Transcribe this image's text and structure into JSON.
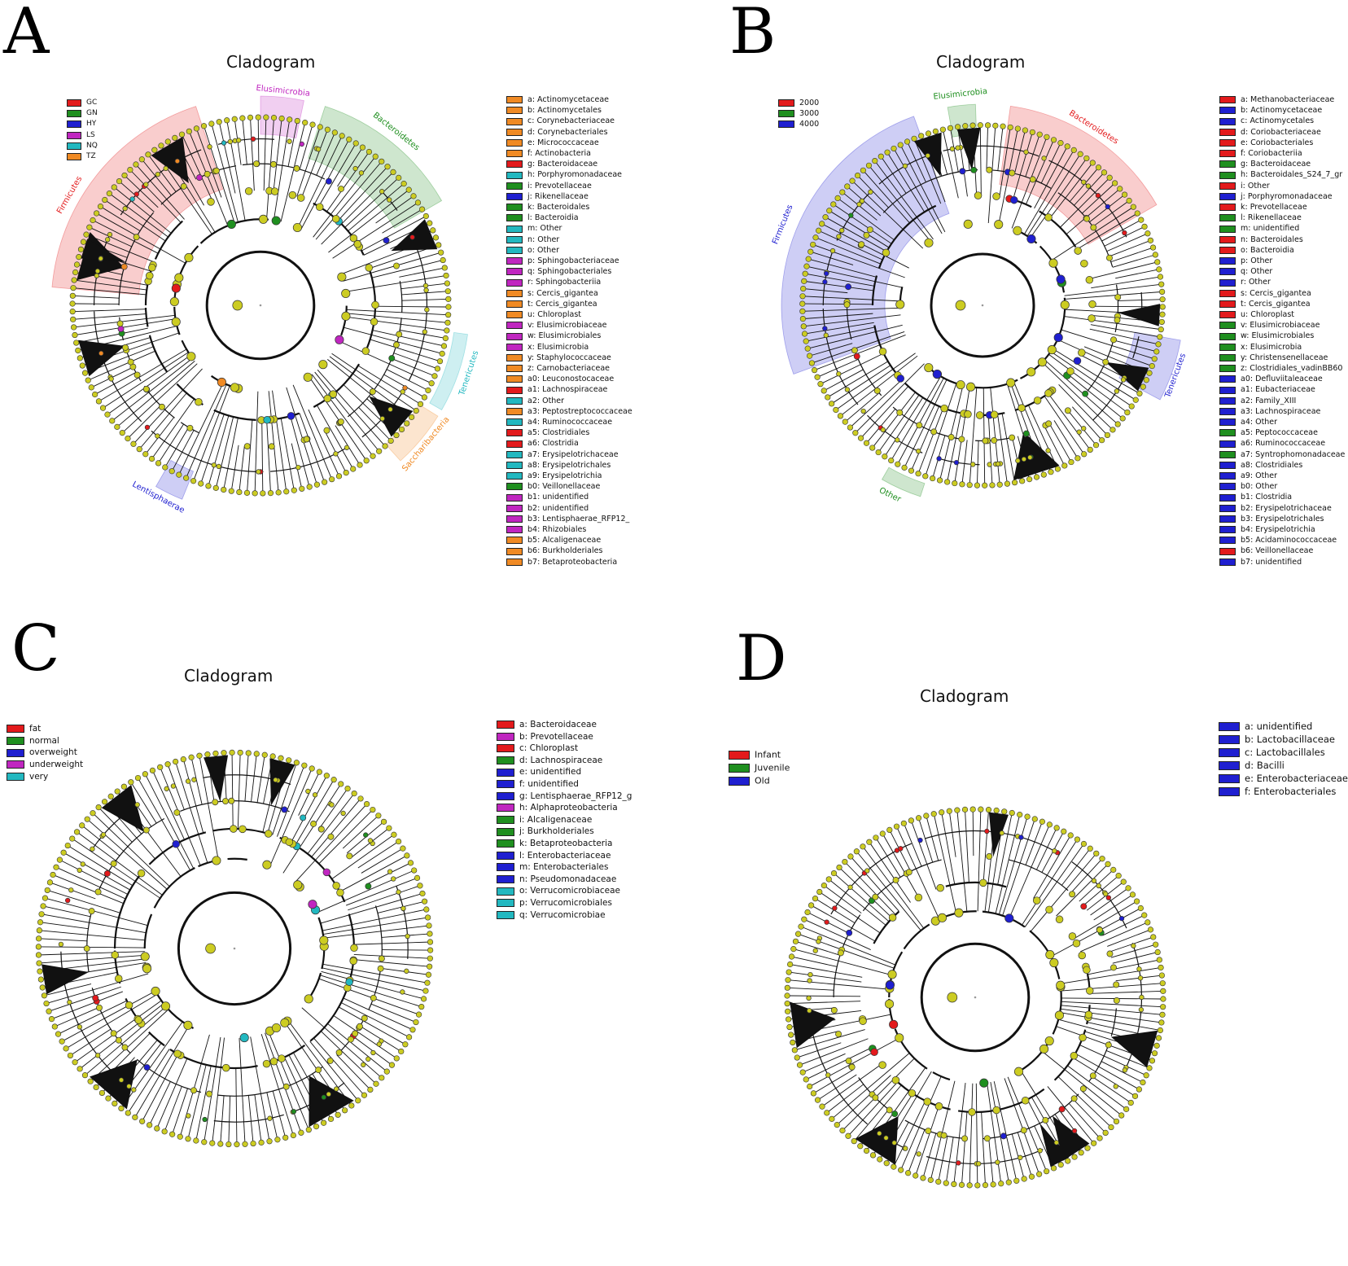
{
  "panels": [
    {
      "id": "A",
      "letter": "A",
      "title": "Cladogram",
      "groups": [
        {
          "label": "GC",
          "color": "#e31a1c"
        },
        {
          "label": "GN",
          "color": "#1f8f1f"
        },
        {
          "label": "HY",
          "color": "#1f1fd0"
        },
        {
          "label": "LS",
          "color": "#c026c0"
        },
        {
          "label": "NQ",
          "color": "#22b8c0"
        },
        {
          "label": "TZ",
          "color": "#f08a24"
        }
      ],
      "phyla": [
        {
          "label": "Firmicutes",
          "color": "#e31a1c"
        },
        {
          "label": "Elusimicrobia",
          "color": "#c026c0"
        },
        {
          "label": "Bacteroidetes",
          "color": "#1f8f1f"
        },
        {
          "label": "Tenericutes",
          "color": "#22b8c0"
        },
        {
          "label": "Saccharibacteria",
          "color": "#f08a24"
        },
        {
          "label": "Lentisphaerae",
          "color": "#1f1fd0"
        }
      ],
      "taxa": [
        {
          "key": "a: Actinomycetaceae",
          "color": "#f08a24"
        },
        {
          "key": "b: Actinomycetales",
          "color": "#f08a24"
        },
        {
          "key": "c: Corynebacteriaceae",
          "color": "#f08a24"
        },
        {
          "key": "d: Corynebacteriales",
          "color": "#f08a24"
        },
        {
          "key": "e: Micrococcaceae",
          "color": "#f08a24"
        },
        {
          "key": "f: Actinobacteria",
          "color": "#f08a24"
        },
        {
          "key": "g: Bacteroidaceae",
          "color": "#e31a1c"
        },
        {
          "key": "h: Porphyromonadaceae",
          "color": "#22b8c0"
        },
        {
          "key": "i: Prevotellaceae",
          "color": "#1f8f1f"
        },
        {
          "key": "j: Rikenellaceae",
          "color": "#1f1fd0"
        },
        {
          "key": "k: Bacteroidales",
          "color": "#1f8f1f"
        },
        {
          "key": "l: Bacteroidia",
          "color": "#1f8f1f"
        },
        {
          "key": "m: Other",
          "color": "#22b8c0"
        },
        {
          "key": "n: Other",
          "color": "#22b8c0"
        },
        {
          "key": "o: Other",
          "color": "#22b8c0"
        },
        {
          "key": "p: Sphingobacteriaceae",
          "color": "#c026c0"
        },
        {
          "key": "q: Sphingobacteriales",
          "color": "#c026c0"
        },
        {
          "key": "r: Sphingobacteriia",
          "color": "#c026c0"
        },
        {
          "key": "s: Cercis_gigantea",
          "color": "#f08a24"
        },
        {
          "key": "t: Cercis_gigantea",
          "color": "#f08a24"
        },
        {
          "key": "u: Chloroplast",
          "color": "#f08a24"
        },
        {
          "key": "v: Elusimicrobiaceae",
          "color": "#c026c0"
        },
        {
          "key": "w: Elusimicrobiales",
          "color": "#c026c0"
        },
        {
          "key": "x: Elusimicrobia",
          "color": "#c026c0"
        },
        {
          "key": "y: Staphylococcaceae",
          "color": "#f08a24"
        },
        {
          "key": "z: Carnobacteriaceae",
          "color": "#f08a24"
        },
        {
          "key": "a0: Leuconostocaceae",
          "color": "#f08a24"
        },
        {
          "key": "a1: Lachnospiraceae",
          "color": "#e31a1c"
        },
        {
          "key": "a2: Other",
          "color": "#22b8c0"
        },
        {
          "key": "a3: Peptostreptococcaceae",
          "color": "#f08a24"
        },
        {
          "key": "a4: Ruminococcaceae",
          "color": "#22b8c0"
        },
        {
          "key": "a5: Clostridiales",
          "color": "#e31a1c"
        },
        {
          "key": "a6: Clostridia",
          "color": "#e31a1c"
        },
        {
          "key": "a7: Erysipelotrichaceae",
          "color": "#22b8c0"
        },
        {
          "key": "a8: Erysipelotrichales",
          "color": "#22b8c0"
        },
        {
          "key": "a9: Erysipelotrichia",
          "color": "#22b8c0"
        },
        {
          "key": "b0: Veillonellaceae",
          "color": "#1f8f1f"
        },
        {
          "key": "b1: unidentified",
          "color": "#c026c0"
        },
        {
          "key": "b2: unidentified",
          "color": "#c026c0"
        },
        {
          "key": "b3: Lentisphaerae_RFP12_",
          "color": "#c026c0"
        },
        {
          "key": "b4: Rhizobiales",
          "color": "#c026c0"
        },
        {
          "key": "b5: Alcaligenaceae",
          "color": "#f08a24"
        },
        {
          "key": "b6: Burkholderiales",
          "color": "#f08a24"
        },
        {
          "key": "b7: Betaproteobacteria",
          "color": "#f08a24"
        }
      ]
    },
    {
      "id": "B",
      "letter": "B",
      "title": "Cladogram",
      "groups": [
        {
          "label": "2000",
          "color": "#e31a1c"
        },
        {
          "label": "3000",
          "color": "#1f8f1f"
        },
        {
          "label": "4000",
          "color": "#1f1fd0"
        }
      ],
      "phyla": [
        {
          "label": "Firmicutes",
          "color": "#1f1fd0"
        },
        {
          "label": "Elusimicrobia",
          "color": "#1f8f1f"
        },
        {
          "label": "Bacteroidetes",
          "color": "#e31a1c"
        },
        {
          "label": "Tenericutes",
          "color": "#1f1fd0"
        },
        {
          "label": "Other",
          "color": "#1f8f1f"
        }
      ],
      "taxa": [
        {
          "key": "a: Methanobacteriaceae",
          "color": "#e31a1c"
        },
        {
          "key": "b: Actinomycetaceae",
          "color": "#1f1fd0"
        },
        {
          "key": "c: Actinomycetales",
          "color": "#1f1fd0"
        },
        {
          "key": "d: Coriobacteriaceae",
          "color": "#e31a1c"
        },
        {
          "key": "e: Coriobacteriales",
          "color": "#e31a1c"
        },
        {
          "key": "f: Coriobacteriia",
          "color": "#e31a1c"
        },
        {
          "key": "g: Bacteroidaceae",
          "color": "#1f8f1f"
        },
        {
          "key": "h: Bacteroidales_S24_7_gr",
          "color": "#1f8f1f"
        },
        {
          "key": "i: Other",
          "color": "#e31a1c"
        },
        {
          "key": "j: Porphyromonadaceae",
          "color": "#1f1fd0"
        },
        {
          "key": "k: Prevotellaceae",
          "color": "#e31a1c"
        },
        {
          "key": "l: Rikenellaceae",
          "color": "#1f8f1f"
        },
        {
          "key": "m: unidentified",
          "color": "#1f8f1f"
        },
        {
          "key": "n: Bacteroidales",
          "color": "#e31a1c"
        },
        {
          "key": "o: Bacteroidia",
          "color": "#e31a1c"
        },
        {
          "key": "p: Other",
          "color": "#1f1fd0"
        },
        {
          "key": "q: Other",
          "color": "#1f1fd0"
        },
        {
          "key": "r: Other",
          "color": "#1f1fd0"
        },
        {
          "key": "s: Cercis_gigantea",
          "color": "#e31a1c"
        },
        {
          "key": "t: Cercis_gigantea",
          "color": "#e31a1c"
        },
        {
          "key": "u: Chloroplast",
          "color": "#e31a1c"
        },
        {
          "key": "v: Elusimicrobiaceae",
          "color": "#1f8f1f"
        },
        {
          "key": "w: Elusimicrobiales",
          "color": "#1f8f1f"
        },
        {
          "key": "x: Elusimicrobia",
          "color": "#1f8f1f"
        },
        {
          "key": "y: Christensenellaceae",
          "color": "#1f8f1f"
        },
        {
          "key": "z: Clostridiales_vadinBB60",
          "color": "#1f8f1f"
        },
        {
          "key": "a0: Defluviitaleaceae",
          "color": "#1f1fd0"
        },
        {
          "key": "a1: Eubacteriaceae",
          "color": "#1f1fd0"
        },
        {
          "key": "a2: Family_XIII",
          "color": "#1f1fd0"
        },
        {
          "key": "a3: Lachnospiraceae",
          "color": "#1f1fd0"
        },
        {
          "key": "a4: Other",
          "color": "#1f1fd0"
        },
        {
          "key": "a5: Peptococcaceae",
          "color": "#1f8f1f"
        },
        {
          "key": "a6: Ruminococcaceae",
          "color": "#1f1fd0"
        },
        {
          "key": "a7: Syntrophomonadaceae",
          "color": "#1f8f1f"
        },
        {
          "key": "a8: Clostridiales",
          "color": "#1f1fd0"
        },
        {
          "key": "a9: Other",
          "color": "#1f1fd0"
        },
        {
          "key": "b0: Other",
          "color": "#1f1fd0"
        },
        {
          "key": "b1: Clostridia",
          "color": "#1f1fd0"
        },
        {
          "key": "b2: Erysipelotrichaceae",
          "color": "#1f1fd0"
        },
        {
          "key": "b3: Erysipelotrichales",
          "color": "#1f1fd0"
        },
        {
          "key": "b4: Erysipelotrichia",
          "color": "#1f1fd0"
        },
        {
          "key": "b5: Acidaminococcaceae",
          "color": "#1f1fd0"
        },
        {
          "key": "b6: Veillonellaceae",
          "color": "#e31a1c"
        },
        {
          "key": "b7: unidentified",
          "color": "#1f1fd0"
        }
      ]
    },
    {
      "id": "C",
      "letter": "C",
      "title": "Cladogram",
      "groups": [
        {
          "label": "fat",
          "color": "#e31a1c"
        },
        {
          "label": "normal",
          "color": "#1f8f1f"
        },
        {
          "label": "overweight",
          "color": "#1f1fd0"
        },
        {
          "label": "underweight",
          "color": "#c026c0"
        },
        {
          "label": "very",
          "color": "#22b8c0"
        }
      ],
      "phyla": [],
      "taxa": [
        {
          "key": "a: Bacteroidaceae",
          "color": "#e31a1c"
        },
        {
          "key": "b: Prevotellaceae",
          "color": "#c026c0"
        },
        {
          "key": "c: Chloroplast",
          "color": "#e31a1c"
        },
        {
          "key": "d: Lachnospiraceae",
          "color": "#1f8f1f"
        },
        {
          "key": "e: unidentified",
          "color": "#1f1fd0"
        },
        {
          "key": "f: unidentified",
          "color": "#1f1fd0"
        },
        {
          "key": "g: Lentisphaerae_RFP12_g",
          "color": "#1f1fd0"
        },
        {
          "key": "h: Alphaproteobacteria",
          "color": "#c026c0"
        },
        {
          "key": "i: Alcaligenaceae",
          "color": "#1f8f1f"
        },
        {
          "key": "j: Burkholderiales",
          "color": "#1f8f1f"
        },
        {
          "key": "k: Betaproteobacteria",
          "color": "#1f8f1f"
        },
        {
          "key": "l: Enterobacteriaceae",
          "color": "#1f1fd0"
        },
        {
          "key": "m: Enterobacteriales",
          "color": "#1f1fd0"
        },
        {
          "key": "n: Pseudomonadaceae",
          "color": "#1f1fd0"
        },
        {
          "key": "o: Verrucomicrobiaceae",
          "color": "#22b8c0"
        },
        {
          "key": "p: Verrucomicrobiales",
          "color": "#22b8c0"
        },
        {
          "key": "q: Verrucomicrobiae",
          "color": "#22b8c0"
        }
      ]
    },
    {
      "id": "D",
      "letter": "D",
      "title": "Cladogram",
      "groups": [
        {
          "label": "Infant",
          "color": "#e31a1c"
        },
        {
          "label": "Juvenile",
          "color": "#1f8f1f"
        },
        {
          "label": "Old",
          "color": "#1f1fd0"
        }
      ],
      "phyla": [],
      "taxa": [
        {
          "key": "a: unidentified",
          "color": "#1f1fd0"
        },
        {
          "key": "b: Lactobacillaceae",
          "color": "#1f1fd0"
        },
        {
          "key": "c: Lactobacillales",
          "color": "#1f1fd0"
        },
        {
          "key": "d: Bacilli",
          "color": "#1f1fd0"
        },
        {
          "key": "e: Enterobacteriaceae",
          "color": "#1f1fd0"
        },
        {
          "key": "f: Enterobacteriales",
          "color": "#1f1fd0"
        }
      ]
    }
  ]
}
